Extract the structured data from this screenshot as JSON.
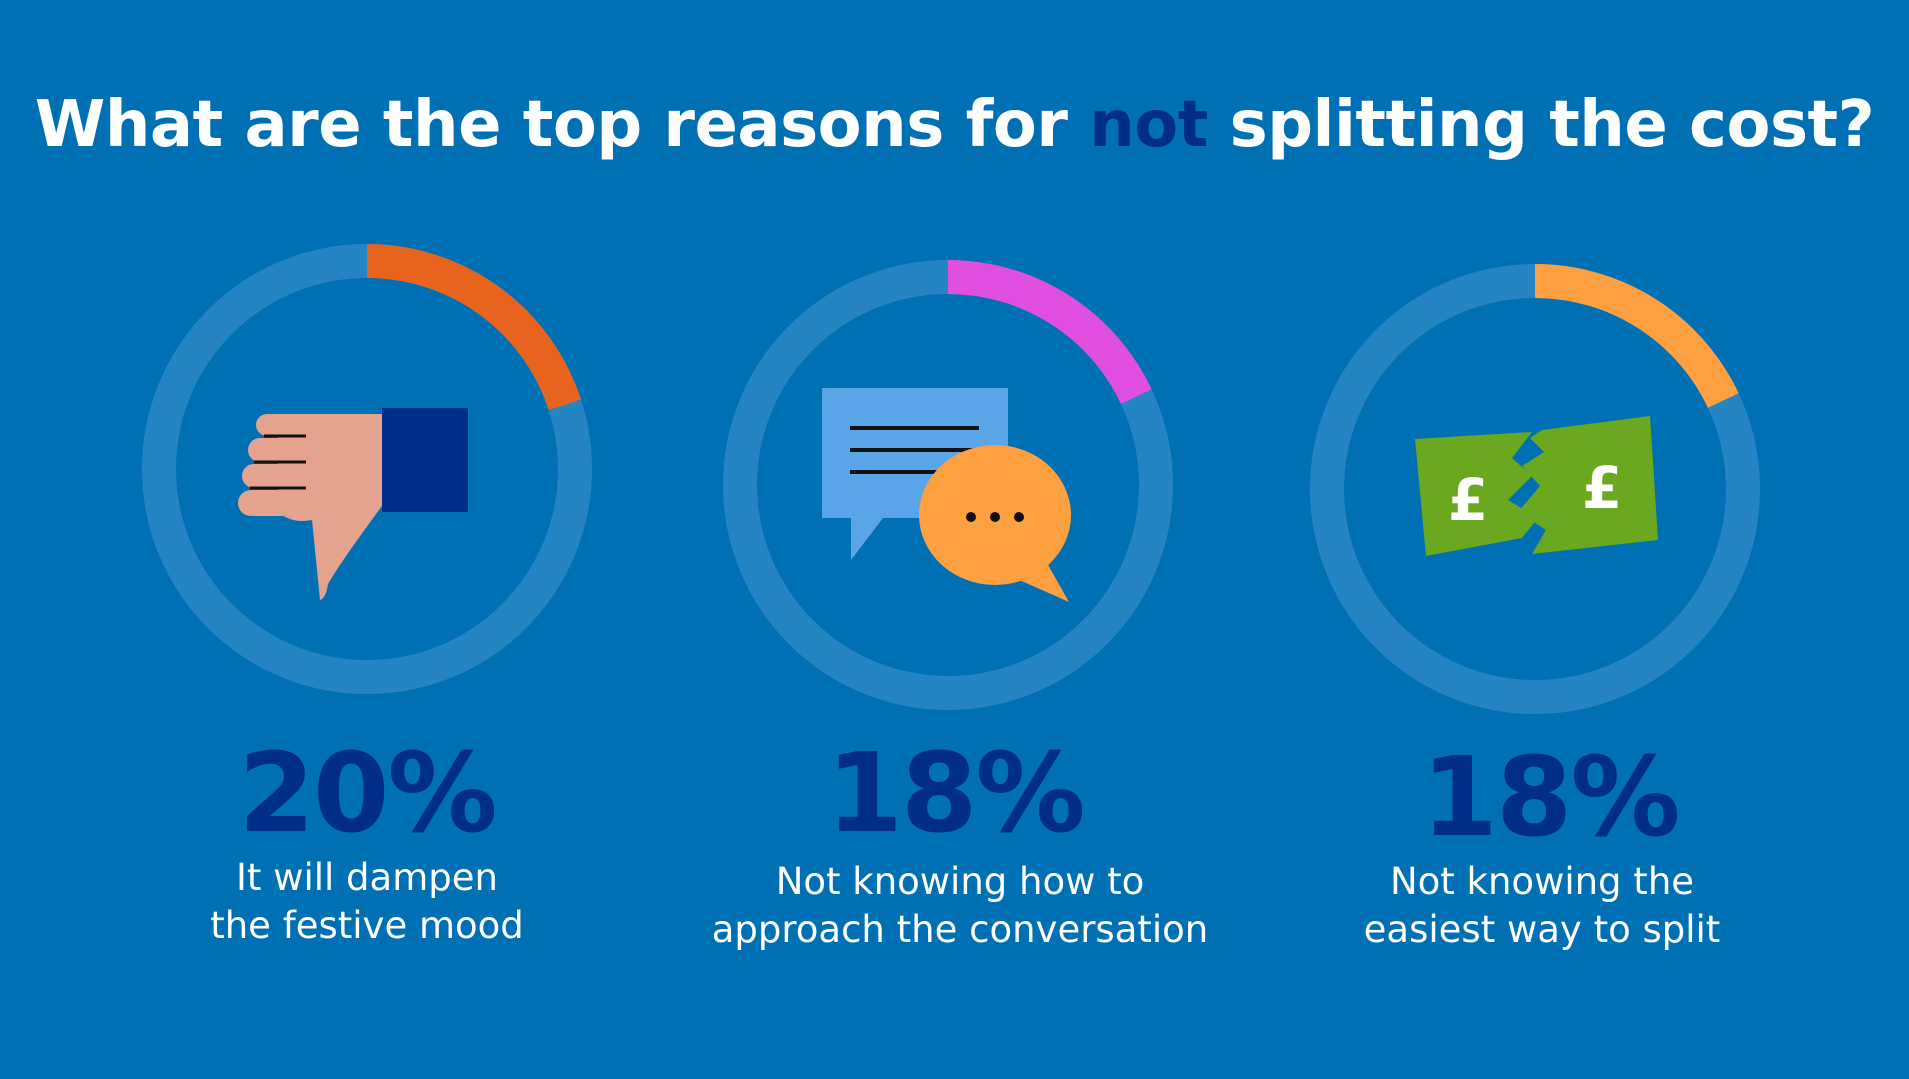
{
  "title": {
    "before": "What are the top reasons for ",
    "highlight": "not",
    "after": " splitting the cost?"
  },
  "colors": {
    "background": "#0070b5",
    "ring_track": "#2585c3",
    "percent_text": "#002c8a",
    "highlight_text": "#002c8a"
  },
  "chart_data": {
    "type": "donut",
    "title": "What are the top reasons for not splitting the cost?",
    "unit": "%",
    "series": [
      {
        "value": 20,
        "display": "20%",
        "label_lines": [
          "It will dampen",
          "the festive mood"
        ],
        "color": "#e8641e",
        "icon": "thumbs-down-icon"
      },
      {
        "value": 18,
        "display": "18%",
        "label_lines": [
          "Not knowing how to",
          "approach the conversation"
        ],
        "color": "#e04fe0",
        "icon": "chat-bubbles-icon"
      },
      {
        "value": 18,
        "display": "18%",
        "label_lines": [
          "Not knowing the",
          "easiest way to split"
        ],
        "color": "#ffa040",
        "icon": "split-pound-note-icon"
      }
    ]
  }
}
